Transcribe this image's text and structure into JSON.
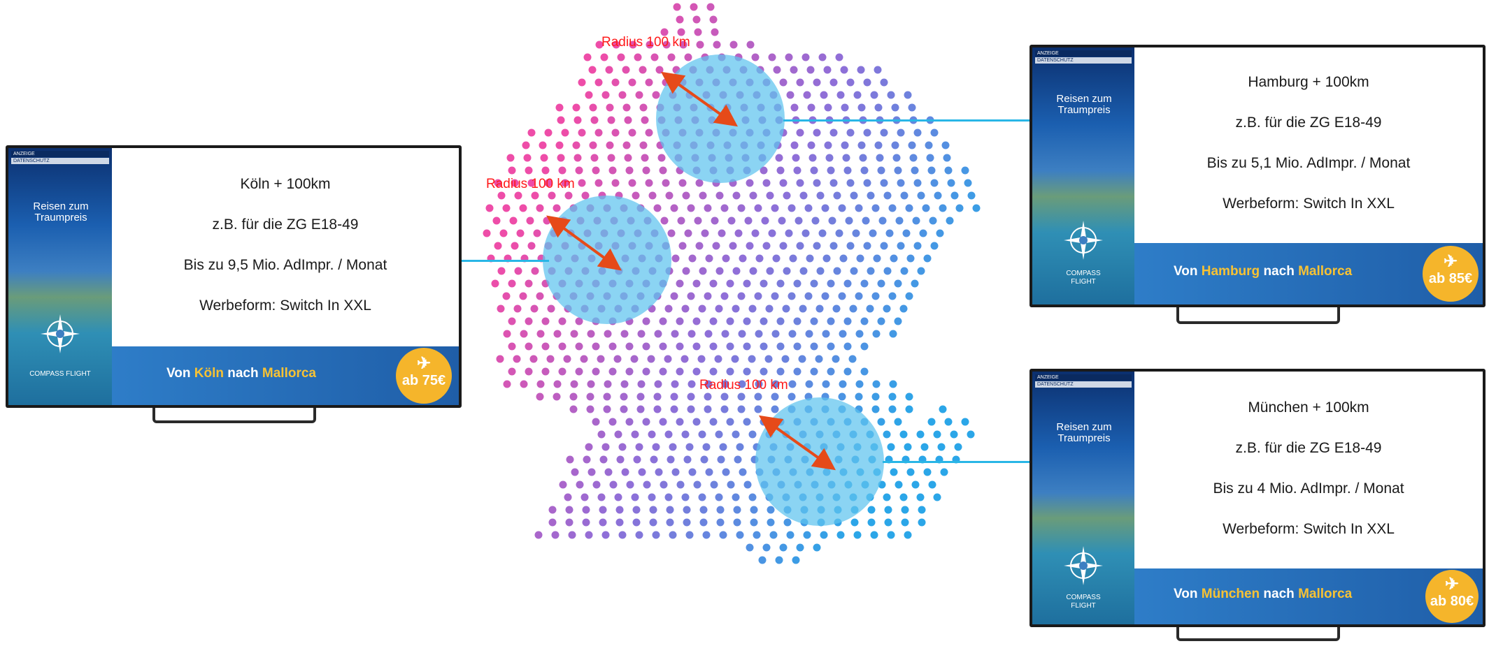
{
  "map": {
    "colors": {
      "pink": "#ee4da8",
      "violet": "#8f6fd8",
      "blue": "#2ba6e8",
      "circle_fill": "#5ec4ee",
      "arrow": "#e64a19"
    },
    "radius_labels": [
      "Radius 100 km",
      "Radius 100 km",
      "Radius 100 km"
    ]
  },
  "tvs": [
    {
      "id": "koeln",
      "lines": [
        "Köln + 100km",
        "z.B. für die ZG E18-49",
        "Bis zu 9,5 Mio. AdImpr. / Monat",
        "Werbeform: Switch In XXL"
      ],
      "ad": {
        "label_anzeige": "ANZEIGE",
        "label_datenschutz": "DATENSCHUTZ",
        "slogan": "Reisen zum Traumpreis",
        "brand": "COMPASS FLIGHT",
        "route_prefix": "Von ",
        "route_city": "Köln",
        "route_mid": " nach ",
        "route_dest": "Mallorca",
        "price": "ab 75€",
        "plane_icon": "✈"
      }
    },
    {
      "id": "hamburg",
      "lines": [
        "Hamburg + 100km",
        "z.B. für die ZG E18-49",
        "Bis zu 5,1 Mio. AdImpr. / Monat",
        "Werbeform: Switch In XXL"
      ],
      "ad": {
        "label_anzeige": "ANZEIGE",
        "label_datenschutz": "DATENSCHUTZ",
        "slogan": "Reisen zum Traumpreis",
        "brand": "COMPASS FLIGHT",
        "route_prefix": "Von ",
        "route_city": "Hamburg",
        "route_mid": " nach ",
        "route_dest": "Mallorca",
        "price": "ab 85€",
        "plane_icon": "✈"
      }
    },
    {
      "id": "muenchen",
      "lines": [
        "München + 100km",
        "z.B. für die ZG E18-49",
        "Bis zu 4 Mio. AdImpr. / Monat",
        "Werbeform: Switch In XXL"
      ],
      "ad": {
        "label_anzeige": "ANZEIGE",
        "label_datenschutz": "DATENSCHUTZ",
        "slogan": "Reisen zum Traumpreis",
        "brand": "COMPASS FLIGHT",
        "route_prefix": "Von ",
        "route_city": "München",
        "route_mid": " nach ",
        "route_dest": "Mallorca",
        "price": "ab 80€",
        "plane_icon": "✈"
      }
    }
  ]
}
